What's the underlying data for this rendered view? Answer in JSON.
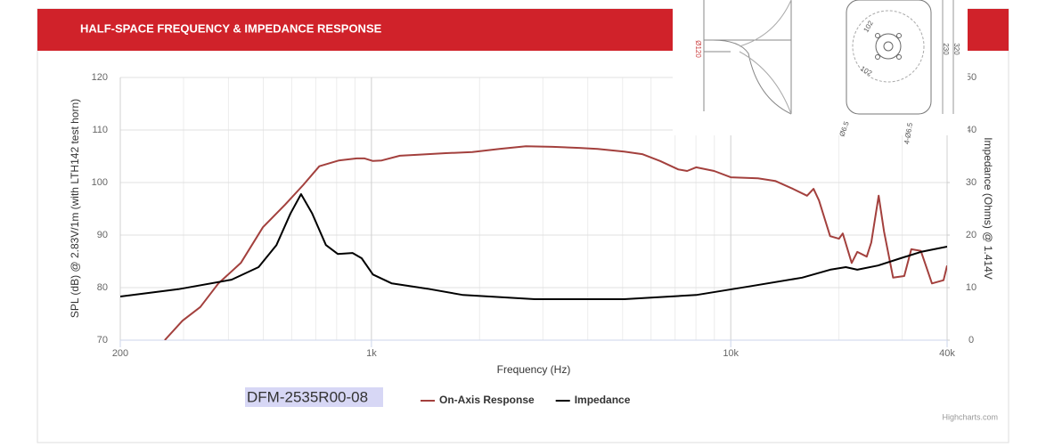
{
  "chart_data": {
    "type": "line",
    "title": "HALF-SPACE FREQUENCY & IMPEDANCE RESPONSE",
    "xlabel": "Frequency (Hz)",
    "ylabel": "SPL (dB) @ 2.83V/1m (with LTH142 test horn)",
    "y2label": "Impedance (Ohms) @ 1.414V",
    "xscale": "log",
    "xlim": [
      200,
      40000
    ],
    "xticks": [
      200,
      {
        "value": 1000,
        "label": "1k"
      },
      {
        "value": 10000,
        "label": "10k"
      },
      {
        "value": 40000,
        "label": "40k"
      }
    ],
    "x_minor_grid": [
      300,
      400,
      500,
      600,
      700,
      800,
      900,
      2000,
      3000,
      4000,
      5000,
      6000,
      7000,
      8000,
      9000,
      20000,
      30000
    ],
    "ylim": [
      70,
      120
    ],
    "yticks": [
      70,
      80,
      90,
      100,
      110,
      120
    ],
    "y2lim": [
      0,
      50
    ],
    "y2ticks": [
      0,
      10,
      20,
      30,
      40,
      50
    ],
    "grid": true,
    "legend": "bottom",
    "model_label": "DFM-2535R00-08",
    "credits": "Highcharts.com",
    "series": [
      {
        "name": "On-Axis Response",
        "color": "#a3403d",
        "axis": "y",
        "x": [
          266,
          298,
          334,
          375,
          433,
          499,
          575,
          645,
          716,
          812,
          910,
          957,
          1010,
          1068,
          1200,
          1350,
          1610,
          1910,
          2270,
          2690,
          3190,
          3790,
          4260,
          5050,
          5670,
          6360,
          7150,
          7560,
          8010,
          8990,
          10000,
          11900,
          13300,
          14900,
          16300,
          17000,
          17600,
          18900,
          20000,
          20500,
          21700,
          22500,
          23900,
          24600,
          25800,
          26700,
          28300,
          30400,
          31800,
          33800,
          36300,
          39100,
          40000
        ],
        "values": [
          70,
          73.7,
          76.3,
          80.8,
          84.7,
          91.5,
          95.8,
          99.5,
          103.1,
          104.2,
          104.6,
          104.6,
          104.1,
          104.2,
          105.1,
          105.3,
          105.6,
          105.8,
          106.4,
          106.9,
          106.8,
          106.6,
          106.4,
          105.9,
          105.4,
          104.1,
          102.5,
          102.2,
          102.9,
          102.2,
          101.0,
          100.8,
          100.3,
          98.8,
          97.5,
          98.8,
          96.6,
          89.8,
          89.3,
          90.3,
          84.7,
          86.8,
          85.9,
          88.6,
          97.5,
          90.7,
          81.9,
          82.2,
          87.3,
          87.0,
          80.8,
          81.4,
          84.2
        ]
      },
      {
        "name": "Impedance",
        "color": "#000000",
        "axis": "y2",
        "x": [
          200,
          290,
          408,
          485,
          544,
          595,
          637,
          684,
          747,
          806,
          886,
          939,
          1010,
          1140,
          1430,
          1800,
          2850,
          5050,
          8010,
          11200,
          15800,
          18900,
          20900,
          22500,
          25700,
          29700,
          33800,
          40000
        ],
        "values": [
          8.3,
          9.7,
          11.5,
          13.9,
          18.1,
          24.1,
          27.8,
          24.1,
          18.1,
          16.4,
          16.6,
          15.6,
          12.5,
          10.8,
          9.8,
          8.6,
          7.8,
          7.8,
          8.6,
          10.2,
          11.9,
          13.4,
          13.9,
          13.4,
          14.2,
          15.6,
          16.8,
          17.8
        ]
      }
    ]
  },
  "drawing_overlay": {
    "labels": [
      "Ø120",
      "102",
      "102",
      "320",
      "230",
      "4-Ø6.5",
      "Ø6.5"
    ]
  }
}
